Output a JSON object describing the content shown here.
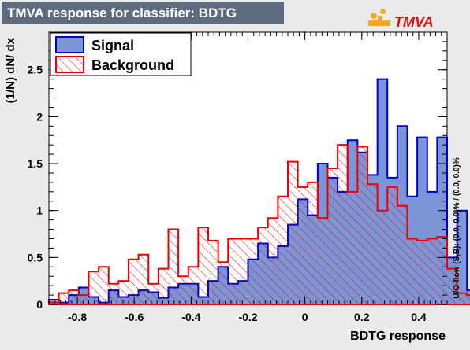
{
  "title": "TMVA response for classifier: BDTG",
  "logo_text": "TMVA",
  "colors": {
    "page_bg": "#ebebeb",
    "title_bg": "#5d6b7d",
    "signal_fill": "#7b96d6",
    "signal_line": "#0000cc",
    "background_line": "#ee0000",
    "hatch": "#ee0000"
  },
  "chart_data": {
    "type": "histogram",
    "title": "TMVA response for classifier: BDTG",
    "xlabel": "BDTG response",
    "ylabel": "(1/N) dN/ dx",
    "xlim": [
      -0.9,
      0.5
    ],
    "ylim": [
      0,
      2.9
    ],
    "xticks": [
      "-0.8",
      "-0.6",
      "-0.4",
      "-0.2",
      "0",
      "0.2",
      "0.4"
    ],
    "xtick_values": [
      -0.8,
      -0.6,
      -0.4,
      -0.2,
      0,
      0.2,
      0.4
    ],
    "yticks": [
      "0",
      "0.5",
      "1",
      "1.5",
      "2",
      "2.5"
    ],
    "ytick_values": [
      0,
      0.5,
      1,
      1.5,
      2,
      2.5
    ],
    "bin_edges_start": -0.9,
    "bin_width": 0.035,
    "legend": [
      {
        "name": "Signal",
        "style": "solid-blue"
      },
      {
        "name": "Background",
        "style": "hatched-red"
      }
    ],
    "legend_placement": "top-left",
    "grid": false,
    "overflow_label": "U/O-flow (S,B): (0.0, 0.0)% / (0.0, 0.0)%",
    "series": [
      {
        "name": "Signal",
        "values": [
          0.05,
          0.02,
          0.1,
          0.18,
          0.08,
          0.02,
          0.15,
          0.08,
          0.1,
          0.15,
          0.13,
          0.07,
          0.18,
          0.22,
          0.22,
          0.08,
          0.25,
          0.4,
          0.22,
          0.25,
          0.48,
          0.65,
          0.5,
          0.62,
          0.85,
          1.12,
          0.95,
          1.5,
          1.35,
          1.2,
          1.75,
          1.62,
          1.38,
          2.4,
          1.35,
          1.9,
          1.15,
          1.78,
          1.2,
          1.78,
          0.5,
          1.0,
          0.15,
          0.15
        ]
      },
      {
        "name": "Background",
        "values": [
          0.02,
          0.12,
          0.15,
          0.1,
          0.35,
          0.4,
          0.22,
          0.25,
          0.48,
          0.53,
          0.22,
          0.38,
          0.8,
          0.3,
          0.4,
          0.82,
          0.68,
          0.45,
          0.7,
          0.7,
          0.7,
          0.82,
          0.92,
          1.15,
          1.52,
          1.25,
          1.3,
          0.92,
          1.45,
          1.7,
          1.2,
          1.68,
          1.28,
          1.0,
          1.25,
          1.05,
          0.7,
          0.68,
          0.7,
          0.72,
          0.38,
          0.12,
          0.1,
          0.05
        ]
      }
    ]
  }
}
